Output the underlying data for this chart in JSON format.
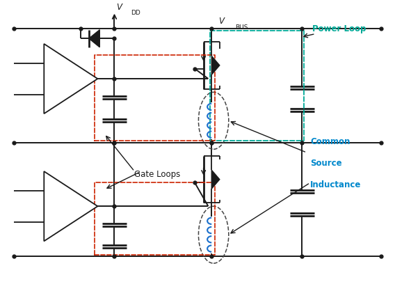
{
  "bg_color": "#ffffff",
  "colors": {
    "black": "#1a1a1a",
    "red_dashed": "#cc2200",
    "green_dashed": "#00a896",
    "blue_inductor": "#1a6fcc",
    "teal_label": "#00a896",
    "cyan_label": "#0088cc"
  },
  "labels": {
    "vdd": "V",
    "vdd_sub": "DD",
    "vbus": "V",
    "vbus_sub": "BUS",
    "power_loop": "Power Loop",
    "gate_loops": "Gate Loops",
    "common_source_line1": "Common",
    "common_source_line2": "Source",
    "common_source_line3": "Inductance"
  }
}
